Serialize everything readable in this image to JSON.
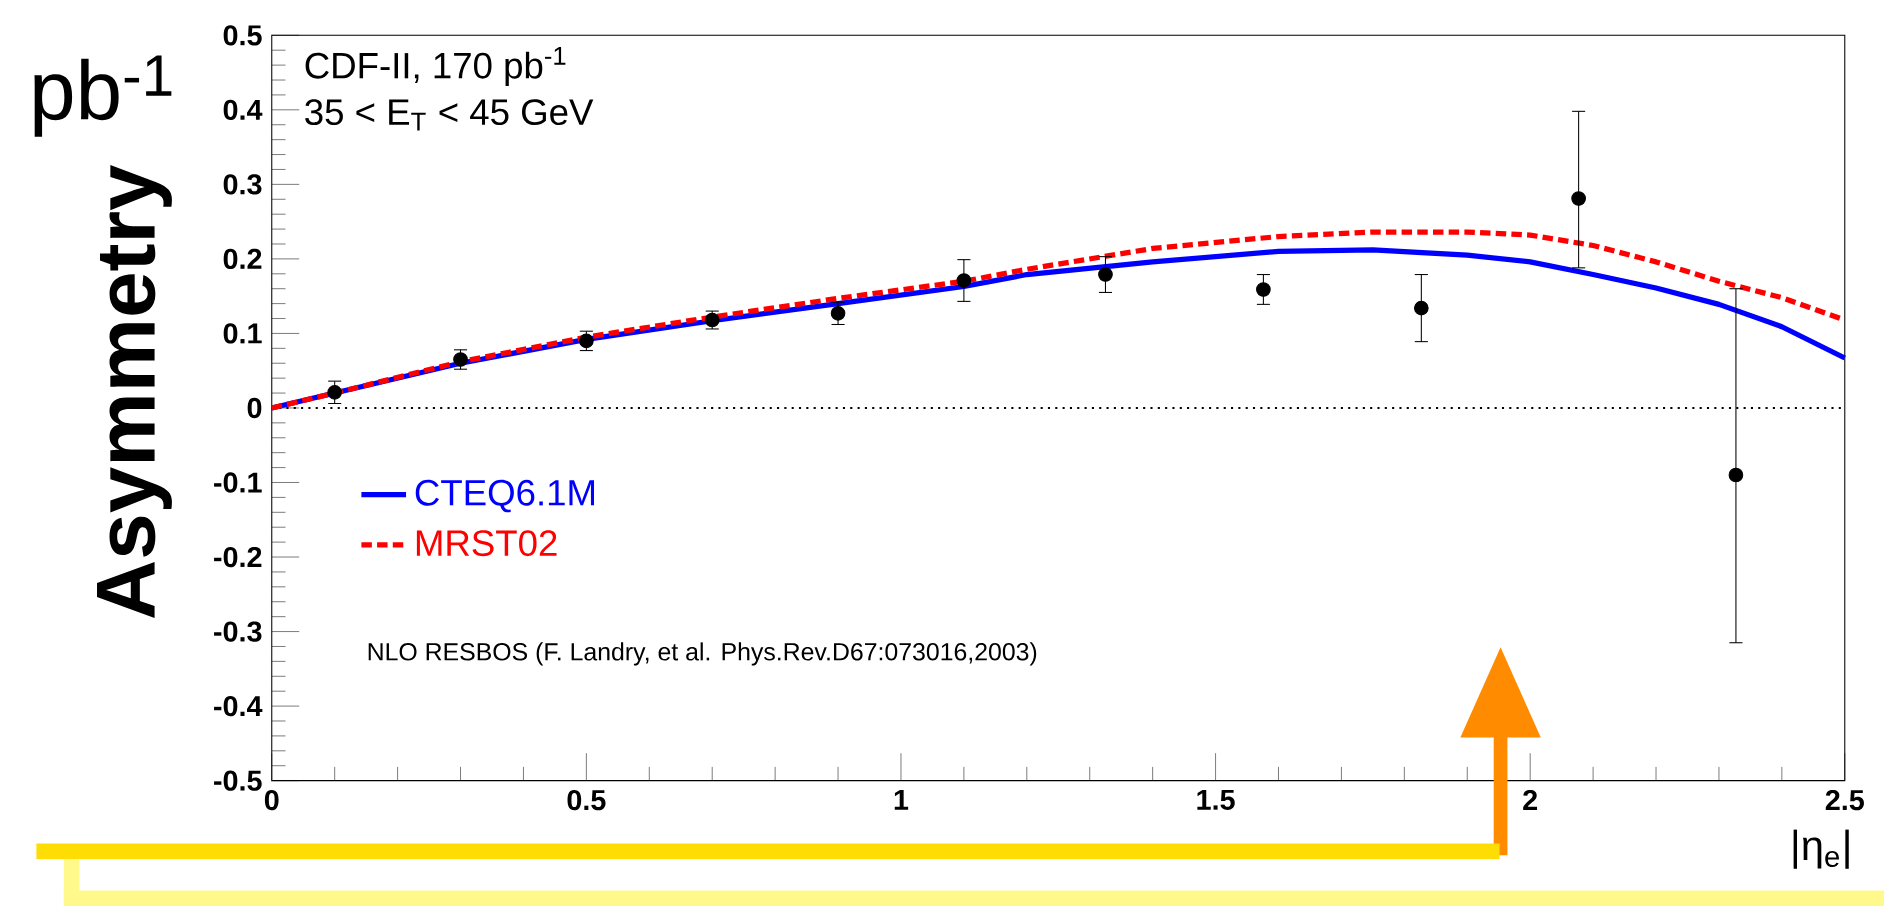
{
  "chart_data": {
    "type": "line",
    "xlabel": "|η$_{e}$|",
    "ylabel": "Asymmetry",
    "xlim": [
      0,
      2.5
    ],
    "ylim": [
      -0.5,
      0.5
    ],
    "xticks": [
      0,
      0.5,
      1,
      1.5,
      2,
      2.5
    ],
    "yticks": [
      -0.5,
      -0.4,
      -0.3,
      -0.2,
      -0.1,
      0,
      0.1,
      0.2,
      0.3,
      0.4,
      0.5
    ],
    "series": [
      {
        "name": "CTEQ6.1M",
        "color": "#0000ff",
        "line_style": "solid",
        "marker": "none",
        "x": [
          0,
          0.1,
          0.3,
          0.5,
          0.7,
          0.9,
          1.1,
          1.2,
          1.4,
          1.6,
          1.75,
          1.9,
          2.0,
          2.1,
          2.2,
          2.3,
          2.4,
          2.5
        ],
        "values": [
          0,
          0.02,
          0.06,
          0.092,
          0.117,
          0.14,
          0.163,
          0.179,
          0.196,
          0.21,
          0.212,
          0.205,
          0.196,
          0.179,
          0.161,
          0.139,
          0.109,
          0.067
        ]
      },
      {
        "name": "MRST02",
        "color": "#ff0000",
        "line_style": "dashed",
        "marker": "none",
        "x": [
          0,
          0.1,
          0.3,
          0.5,
          0.7,
          0.9,
          1.1,
          1.2,
          1.4,
          1.6,
          1.75,
          1.9,
          2.0,
          2.1,
          2.2,
          2.3,
          2.4,
          2.5
        ],
        "values": [
          0,
          0.02,
          0.062,
          0.095,
          0.122,
          0.147,
          0.17,
          0.186,
          0.214,
          0.23,
          0.236,
          0.236,
          0.232,
          0.218,
          0.196,
          0.17,
          0.148,
          0.118
        ]
      },
      {
        "type": "scatter",
        "color": "#000000",
        "x": [
          0.1,
          0.3,
          0.5,
          0.7,
          0.9,
          1.1,
          1.325,
          1.576,
          1.827,
          2.077,
          2.327
        ],
        "values": [
          0.021,
          0.065,
          0.09,
          0.118,
          0.127,
          0.171,
          0.179,
          0.159,
          0.134,
          0.281,
          -0.09
        ],
        "errors": [
          0.015,
          0.013,
          0.013,
          0.012,
          0.015,
          0.028,
          0.024,
          0.02,
          0.045,
          [
            0.188,
            0.398
          ],
          [
            -0.315,
            0.16
          ]
        ]
      }
    ],
    "ref_lines": [
      {
        "axis": "y",
        "value": 0,
        "color": "#000000",
        "line_style": "dotted"
      }
    ],
    "legend": "left",
    "grid": false,
    "marker": "circle",
    "annotations": [
      "CDF-II, 170 pb$^{-1}$",
      "35 < E$_{T}$ < 45 GeV",
      "NLO RESBOS (F. Landry, et al. Phys.Rev.D67:073016,2003)",
      "pb$^{-1}$"
    ]
  }
}
